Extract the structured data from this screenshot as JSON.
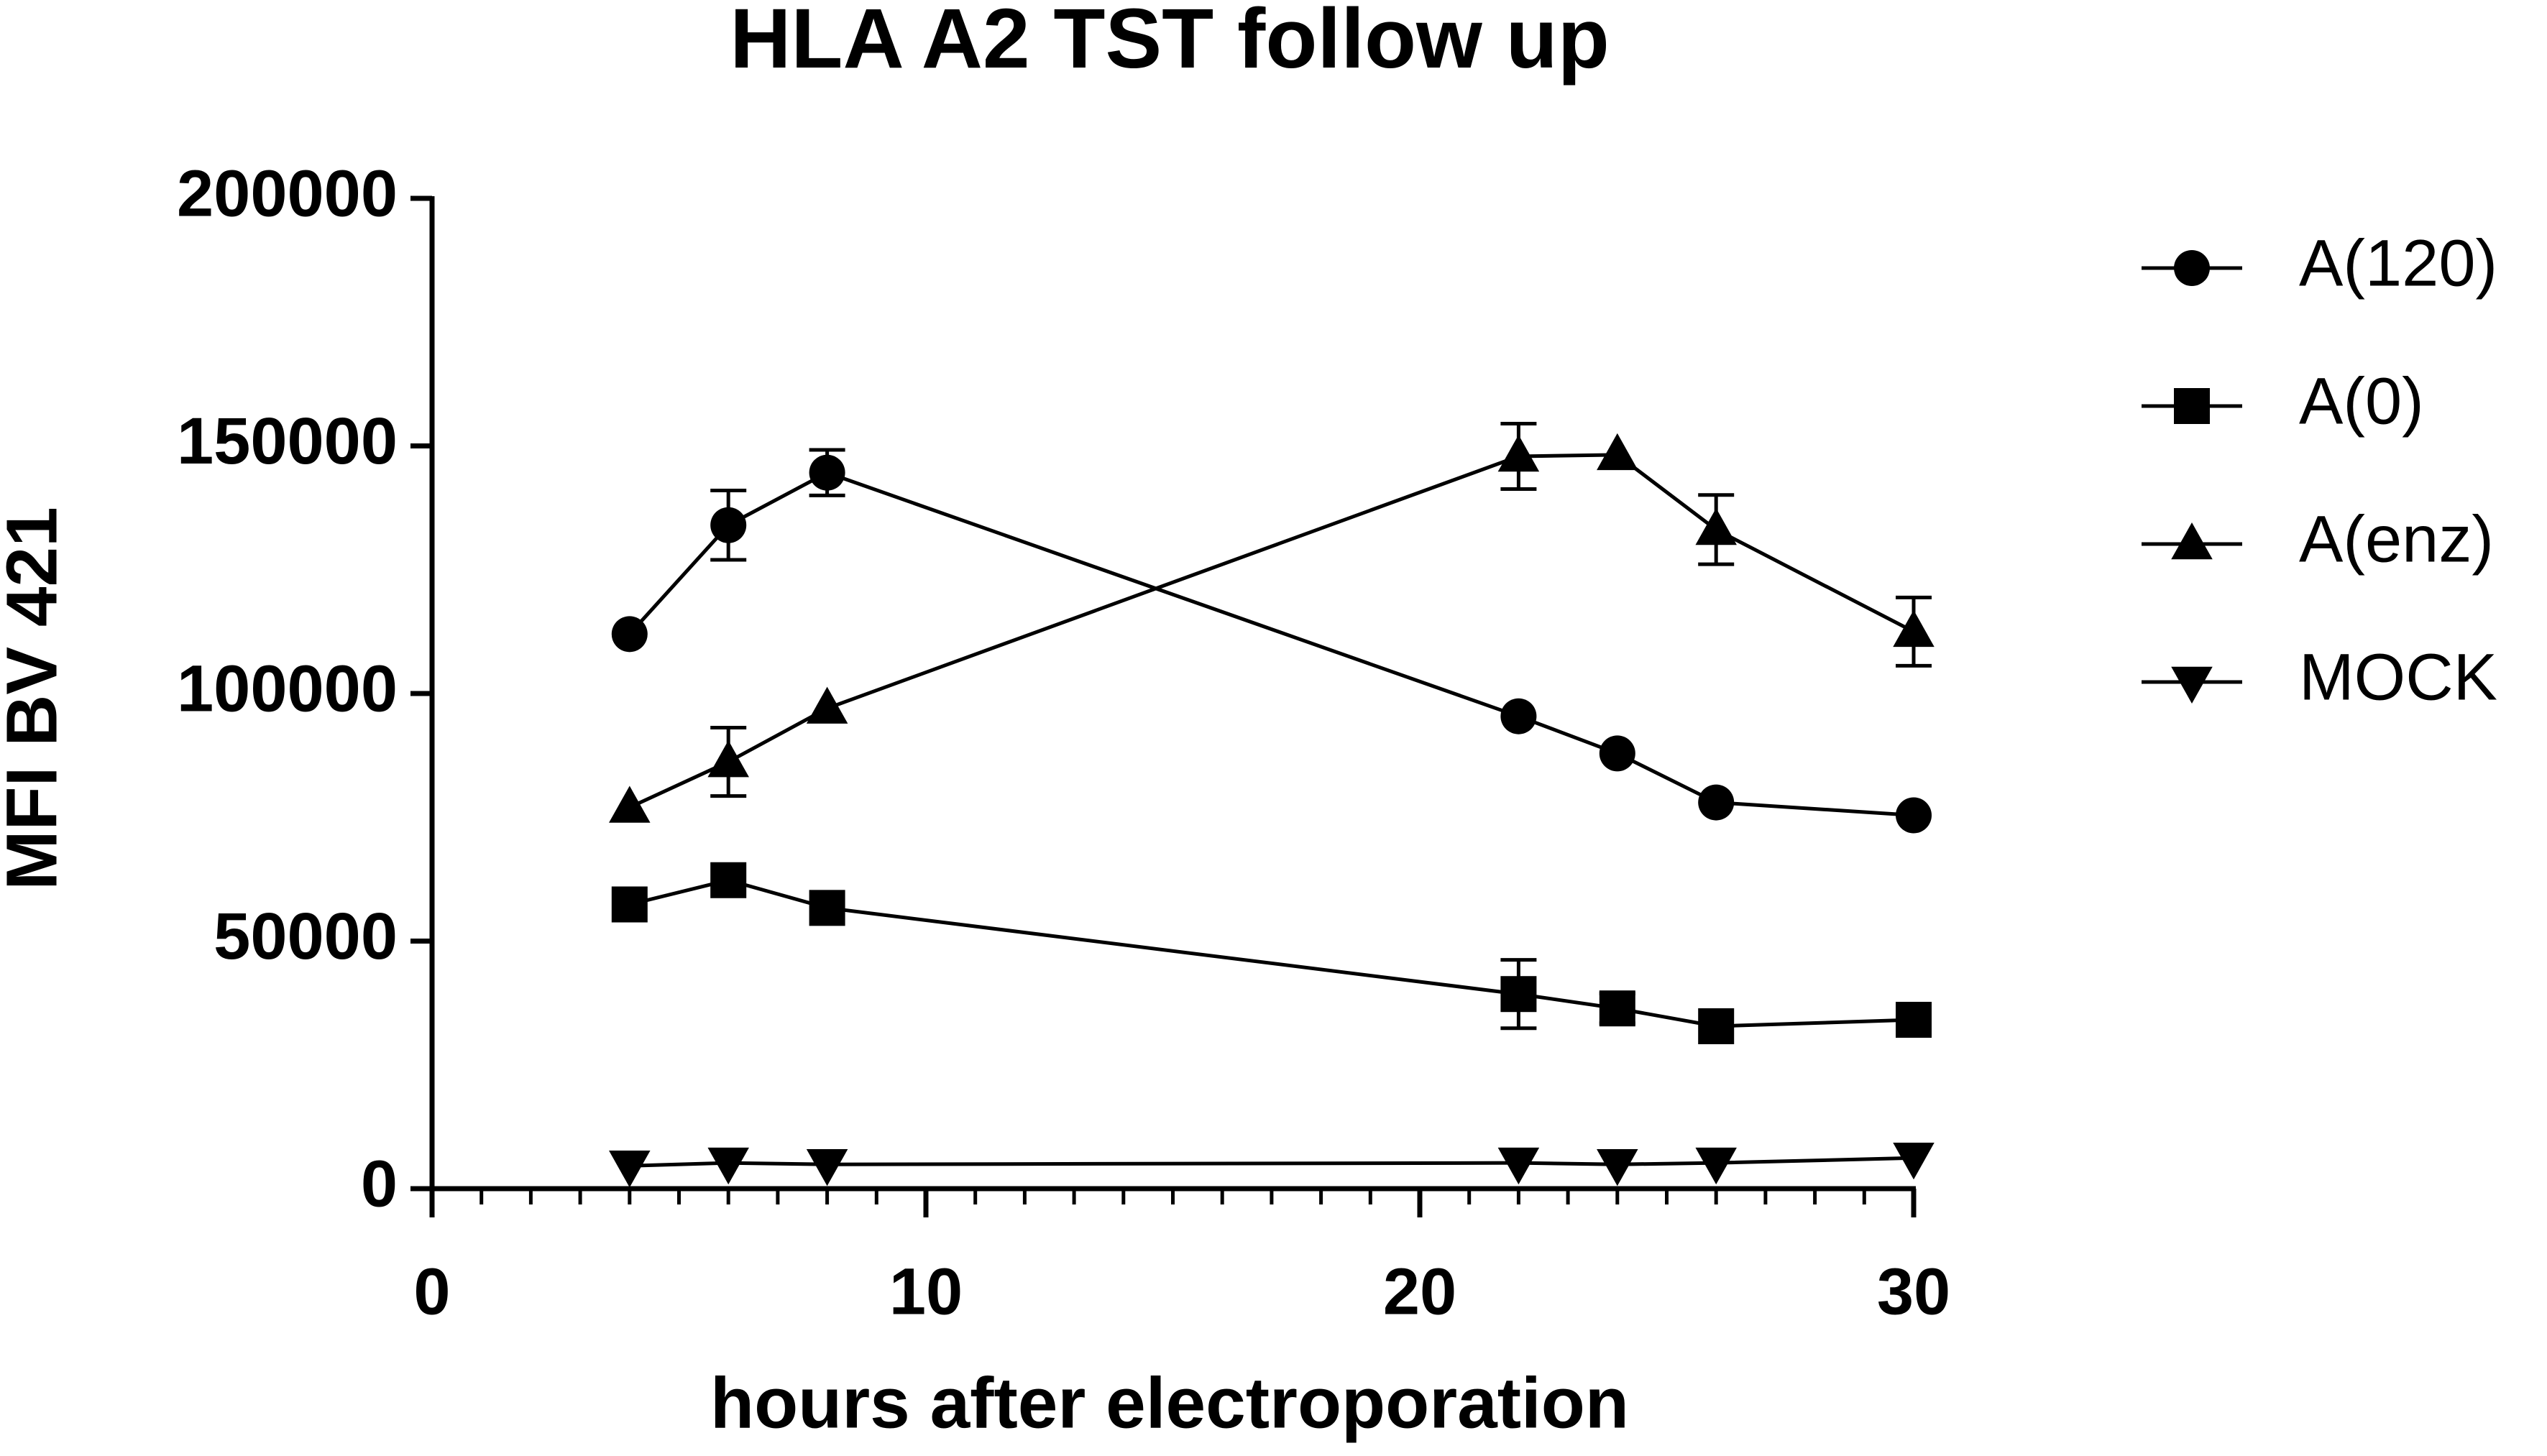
{
  "chart_data": {
    "type": "line",
    "title": "HLA A2 TST follow up",
    "x_label": "hours after electroporation",
    "y_label": "MFI BV 421",
    "x": [
      4,
      6,
      8,
      22,
      24,
      26,
      30
    ],
    "xlim": [
      0,
      30
    ],
    "xticks": [
      0,
      10,
      20,
      30
    ],
    "ylim": [
      0,
      200000
    ],
    "yticks": [
      0,
      50000,
      100000,
      150000,
      200000
    ],
    "grid": false,
    "legend": "right",
    "series": [
      {
        "name": "A(120)",
        "color": "#000000",
        "marker": "circle",
        "values": [
          112000,
          134000,
          144600,
          95400,
          87900,
          78000,
          75400
        ],
        "errors": [
          null,
          7000,
          4600,
          null,
          null,
          null,
          null
        ]
      },
      {
        "name": "A(0)",
        "color": "#000000",
        "marker": "square",
        "values": [
          57400,
          62300,
          56700,
          39300,
          36400,
          32800,
          34100
        ],
        "errors": [
          null,
          null,
          null,
          6900,
          3000,
          null,
          null
        ]
      },
      {
        "name": "A(enz)",
        "color": "#000000",
        "marker": "triangle-up",
        "values": [
          77000,
          86200,
          97000,
          147900,
          148200,
          133100,
          112500
        ],
        "errors": [
          null,
          6900,
          null,
          6600,
          null,
          7000,
          6900
        ]
      },
      {
        "name": "MOCK",
        "color": "#000000",
        "marker": "triangle-down",
        "values": [
          4600,
          5200,
          4900,
          5200,
          4900,
          5200,
          6200
        ],
        "errors": [
          null,
          null,
          null,
          null,
          null,
          null,
          null
        ]
      }
    ]
  }
}
